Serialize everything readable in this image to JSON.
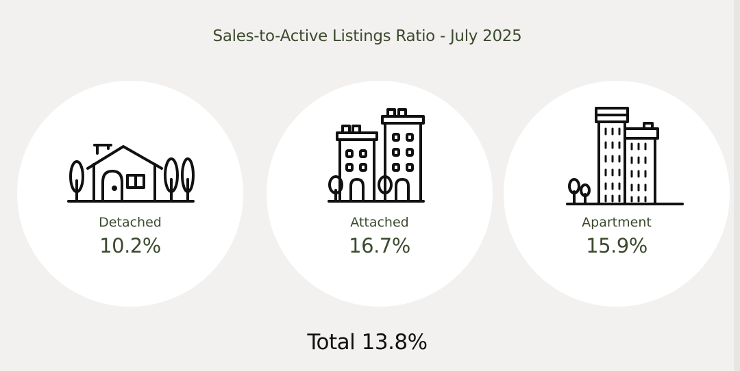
{
  "title": "Sales-to-Active Listings Ratio - July 2025",
  "categories": [
    {
      "label": "Detached",
      "value": "10.2%",
      "icon": "house-icon"
    },
    {
      "label": "Attached",
      "value": "16.7%",
      "icon": "townhouse-icon"
    },
    {
      "label": "Apartment",
      "value": "15.9%",
      "icon": "apartment-icon"
    }
  ],
  "total": "Total 13.8%",
  "colors": {
    "background": "#f2f1ef",
    "card": "#ffffff",
    "accent_text": "#3c4a2e",
    "total_text": "#111111",
    "icon_stroke": "#111111"
  }
}
